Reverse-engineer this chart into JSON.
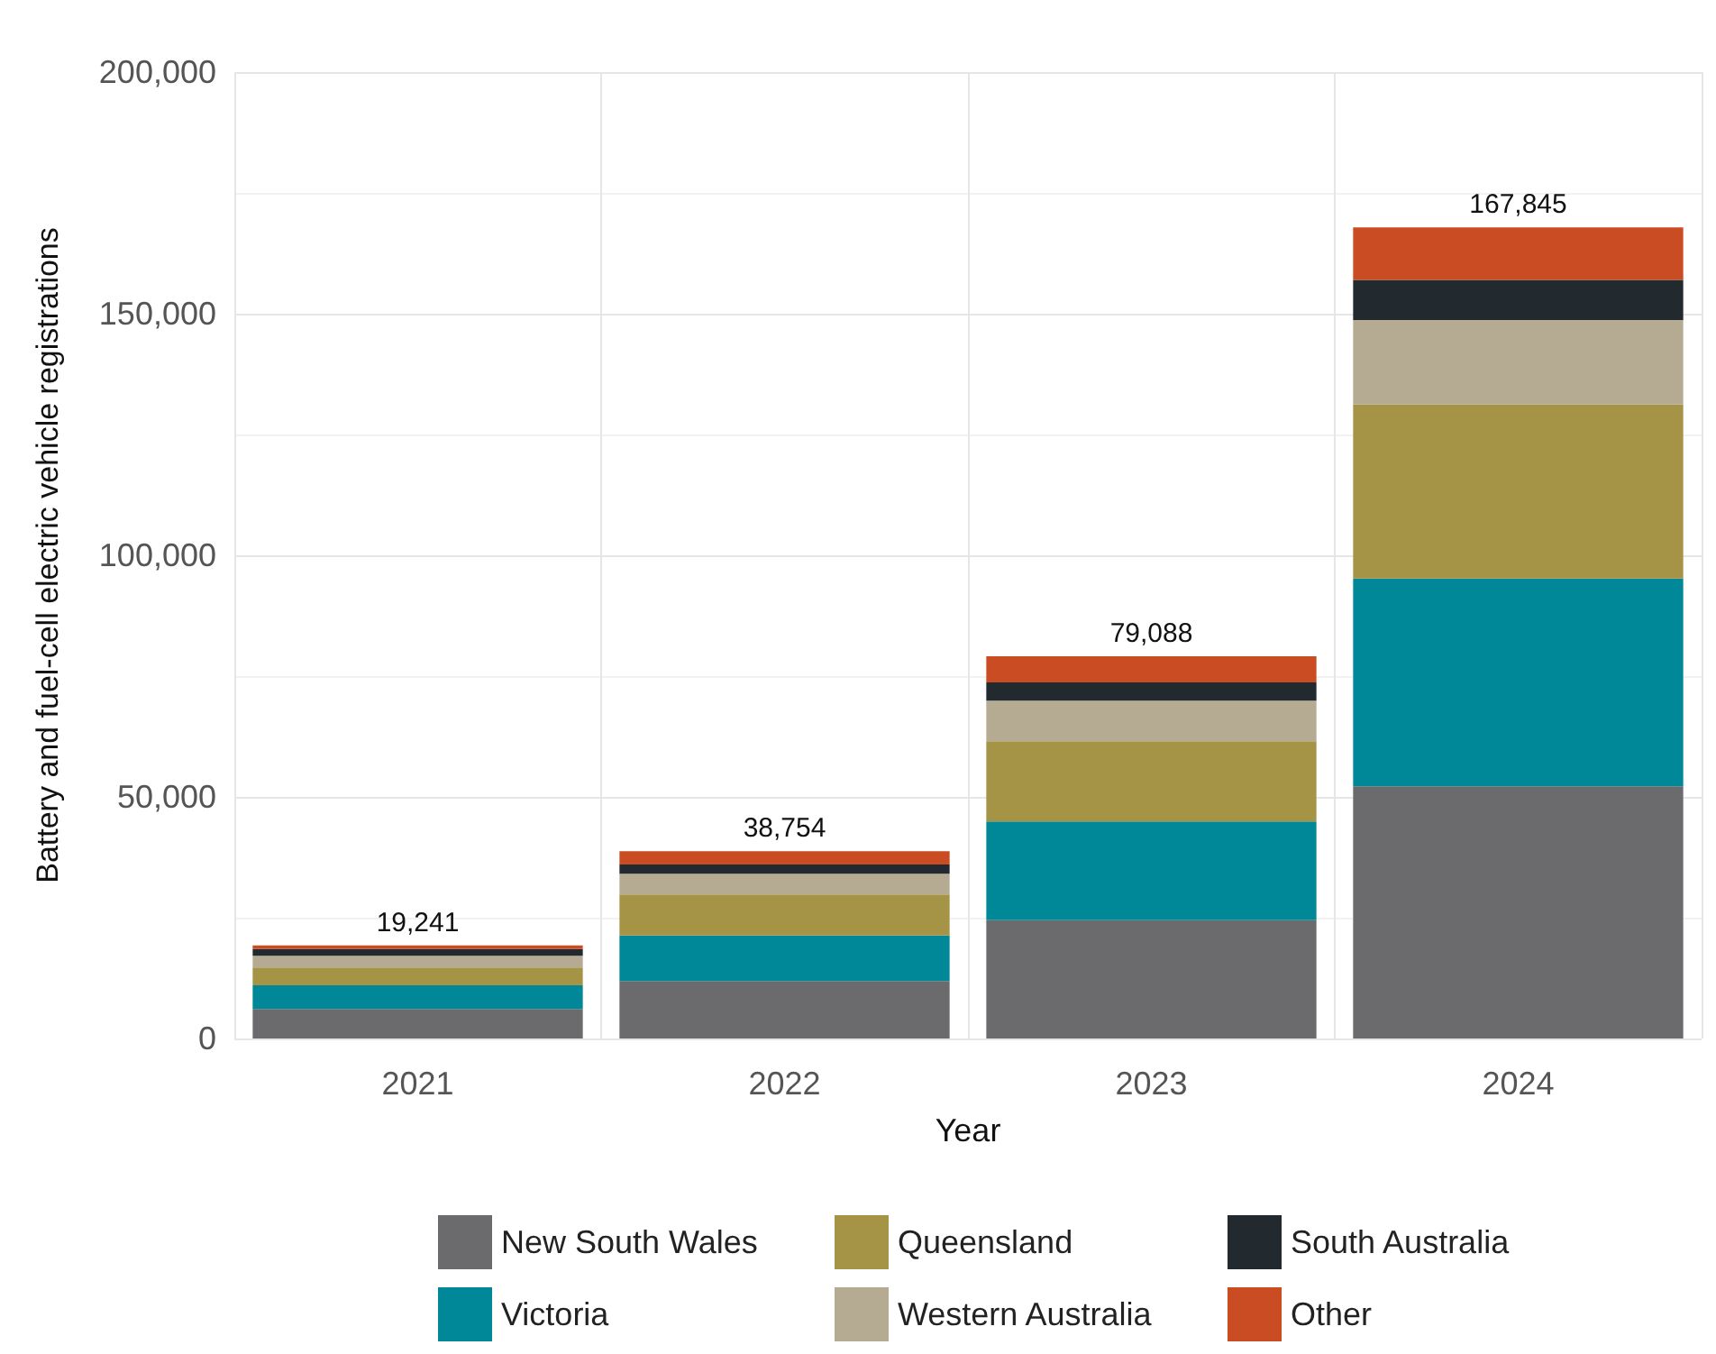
{
  "chart_data": {
    "type": "bar",
    "stacked": true,
    "xlabel": "Year",
    "ylabel": "Battery and fuel-cell electric vehicle registrations",
    "categories": [
      "2021",
      "2022",
      "2023",
      "2024"
    ],
    "series": [
      {
        "name": "New South Wales",
        "color": "#6b6b6d",
        "values": [
          6100,
          11900,
          24500,
          52200
        ]
      },
      {
        "name": "Victoria",
        "color": "#008899",
        "values": [
          4900,
          9400,
          20400,
          43000
        ]
      },
      {
        "name": "Queensland",
        "color": "#a59346",
        "values": [
          3700,
          8500,
          16600,
          36000
        ]
      },
      {
        "name": "Western Australia",
        "color": "#b5ab93",
        "values": [
          2400,
          4300,
          8400,
          17500
        ]
      },
      {
        "name": "South Australia",
        "color": "#22292f",
        "values": [
          1400,
          1900,
          3800,
          8300
        ]
      },
      {
        "name": "Other",
        "color": "#c94c22",
        "values": [
          741,
          2754,
          5388,
          10845
        ]
      }
    ],
    "totals": [
      "19,241",
      "38,754",
      "79,088",
      "167,845"
    ],
    "ylim": [
      0,
      200000
    ],
    "yticks": [
      {
        "value": 0,
        "label": "0"
      },
      {
        "value": 50000,
        "label": "50,000"
      },
      {
        "value": 100000,
        "label": "100,000"
      },
      {
        "value": 150000,
        "label": "150,000"
      },
      {
        "value": 200000,
        "label": "200,000"
      }
    ],
    "grid": true,
    "legend": "bottom"
  }
}
